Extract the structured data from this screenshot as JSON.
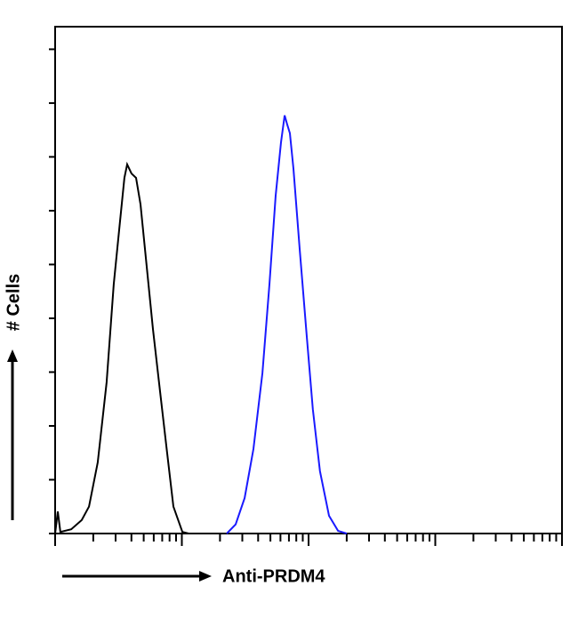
{
  "chart_data": {
    "type": "line",
    "xlabel": "Anti-PRDM4",
    "ylabel": "# Cells",
    "xscale": "log",
    "xlim": [
      1,
      10000
    ],
    "ylim": [
      0,
      9.42
    ],
    "xticks": [
      1,
      2,
      3,
      4,
      5,
      6,
      7,
      8,
      9,
      10,
      20,
      30,
      40,
      50,
      60,
      70,
      80,
      90,
      100,
      200,
      300,
      400,
      500,
      600,
      700,
      800,
      900,
      1000,
      2000,
      3000,
      4000,
      5000,
      6000,
      7000,
      8000,
      9000,
      10000
    ],
    "yticks": [
      0,
      1,
      2,
      3,
      4,
      5,
      6,
      7,
      8,
      9
    ],
    "series": [
      {
        "color": "#000000",
        "x": [
          1,
          1.05,
          1.1,
          1.34,
          1.62,
          1.85,
          2.17,
          2.55,
          2.9,
          3.25,
          3.52,
          3.7,
          4.01,
          4.35,
          4.72,
          5.28,
          5.91,
          6.73,
          7.66,
          8.58,
          10.1,
          11.3
        ],
        "values": [
          0,
          0.41,
          0.03,
          0.08,
          0.25,
          0.5,
          1.32,
          2.81,
          4.63,
          5.79,
          6.61,
          6.86,
          6.69,
          6.61,
          6.12,
          4.96,
          3.8,
          2.64,
          1.49,
          0.5,
          0.03,
          0
        ]
      },
      {
        "color": "#1a1aff",
        "x": [
          22.6,
          26.6,
          31.3,
          36.7,
          43.2,
          49.1,
          55,
          60.6,
          64.7,
          67.9,
          71.2,
          76,
          85.1,
          96.9,
          108,
          123,
          145,
          171,
          200
        ],
        "values": [
          0,
          0.17,
          0.66,
          1.57,
          2.98,
          4.63,
          6.28,
          7.27,
          7.77,
          7.6,
          7.44,
          6.78,
          5.29,
          3.64,
          2.31,
          1.16,
          0.33,
          0.05,
          0
        ]
      }
    ]
  }
}
